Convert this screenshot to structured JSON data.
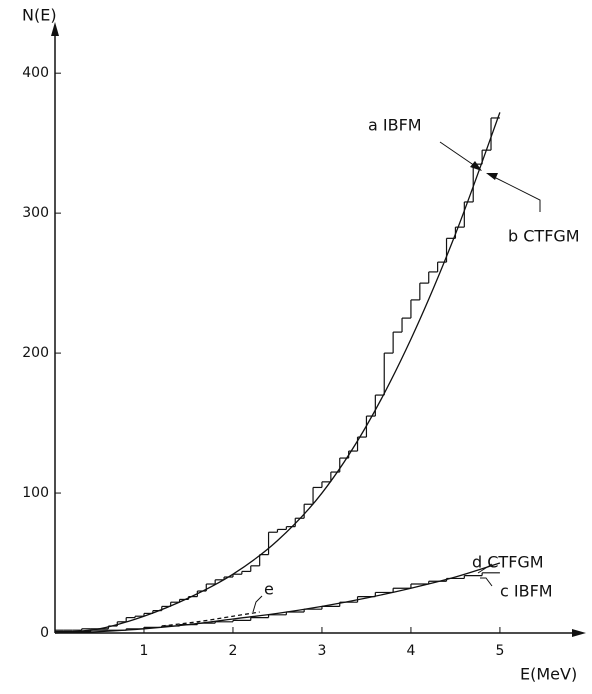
{
  "chart_data": {
    "type": "line",
    "ylabel": "N(E)",
    "xlabel": "E(MeV)",
    "xlim": [
      0,
      5.9
    ],
    "ylim": [
      0,
      438
    ],
    "xticks": [
      1,
      2,
      3,
      4,
      5
    ],
    "yticks": [
      0,
      100,
      200,
      300,
      400
    ],
    "color": "#111111",
    "series": [
      {
        "name": "a IBFM",
        "style": "step",
        "bins": [
          0,
          0.1,
          0.2,
          0.3,
          0.4,
          0.5,
          0.6,
          0.7,
          0.8,
          0.9,
          1,
          1.1,
          1.2,
          1.3,
          1.4,
          1.5,
          1.6,
          1.7,
          1.8,
          1.9,
          2,
          2.1,
          2.2,
          2.3,
          2.4,
          2.5,
          2.6,
          2.7,
          2.8,
          2.9,
          3,
          3.1,
          3.2,
          3.3,
          3.4,
          3.5,
          3.6,
          3.7,
          3.8,
          3.9,
          4,
          4.1,
          4.2,
          4.3,
          4.4,
          4.5,
          4.6,
          4.7,
          4.8,
          4.9,
          5
        ],
        "values": [
          2,
          2,
          2,
          3,
          3,
          3,
          5,
          8,
          11,
          12,
          14,
          16,
          19,
          22,
          24,
          26,
          30,
          35,
          38,
          40,
          42,
          44,
          48,
          56,
          72,
          74,
          76,
          82,
          92,
          104,
          108,
          115,
          125,
          130,
          140,
          155,
          170,
          200,
          215,
          225,
          238,
          250,
          258,
          265,
          282,
          290,
          308,
          335,
          345,
          368
        ]
      },
      {
        "name": "b CTFGM",
        "style": "smooth",
        "x": [
          0,
          0.5,
          1,
          1.5,
          2,
          2.5,
          3,
          3.5,
          4,
          4.5,
          5
        ],
        "values": [
          0,
          3,
          12,
          25,
          42,
          66,
          100,
          148,
          210,
          285,
          372
        ]
      },
      {
        "name": "c IBFM",
        "style": "step",
        "bins": [
          0,
          0.2,
          0.4,
          0.6,
          0.8,
          1,
          1.2,
          1.4,
          1.6,
          1.8,
          2,
          2.2,
          2.4,
          2.6,
          2.8,
          3,
          3.2,
          3.4,
          3.6,
          3.8,
          4,
          4.2,
          4.4,
          4.6,
          4.8,
          5
        ],
        "values": [
          1,
          1,
          2,
          2,
          3,
          4,
          5,
          6,
          7,
          8,
          9,
          11,
          13,
          15,
          17,
          19,
          22,
          26,
          29,
          32,
          35,
          37,
          39,
          41,
          43
        ]
      },
      {
        "name": "d CTFGM",
        "style": "smooth",
        "x": [
          0,
          0.5,
          1,
          1.5,
          2,
          2.5,
          3,
          3.5,
          4,
          4.5,
          5
        ],
        "values": [
          0,
          1,
          3,
          6,
          10,
          14,
          19,
          25,
          32,
          40,
          50
        ]
      },
      {
        "name": "e",
        "style": "dashed",
        "x": [
          1.2,
          1.6,
          2,
          2.3
        ],
        "values": [
          5,
          8,
          12,
          15
        ]
      }
    ]
  }
}
